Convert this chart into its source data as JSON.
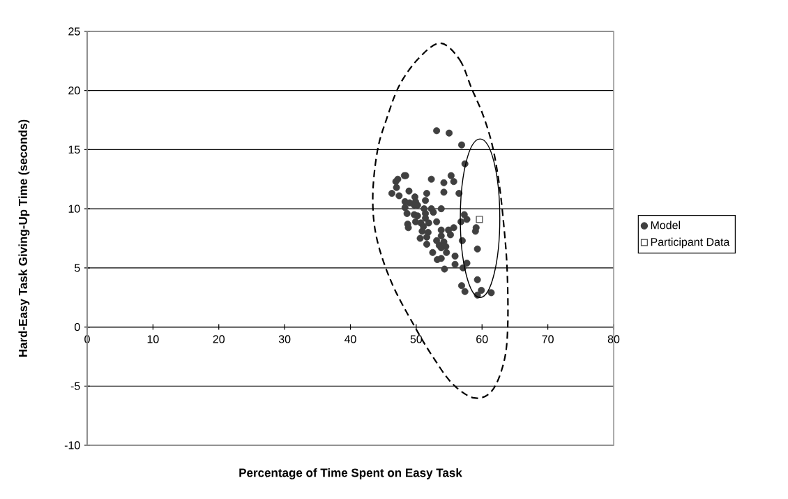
{
  "chart_data": {
    "type": "scatter",
    "xlabel": "Percentage of Time Spent on Easy Task",
    "ylabel": "Hard-Easy Task Giving-Up Time (seconds)",
    "xlim": [
      0,
      80
    ],
    "xticks": [
      0,
      10,
      20,
      30,
      40,
      50,
      60,
      70,
      80
    ],
    "ylim": [
      -10,
      25
    ],
    "yticks": [
      -10,
      -5,
      0,
      5,
      10,
      15,
      20,
      25
    ],
    "grid": "y",
    "legend": "right",
    "series": [
      {
        "name": "Model",
        "color": "#404040",
        "marker": "circle",
        "x": [
          53.1,
          55.0,
          56.9,
          57.4,
          48.2,
          48.4,
          46.9,
          47.2,
          52.3,
          55.3,
          55.7,
          54.2,
          47.0,
          46.3,
          48.9,
          47.4,
          51.6,
          54.2,
          56.5,
          49.8,
          51.4,
          48.3,
          49.0,
          49.9,
          49.7,
          50.2,
          48.3,
          51.2,
          52.3,
          53.8,
          48.6,
          49.7,
          50.2,
          51.4,
          52.6,
          51.4,
          57.3,
          57.7,
          56.8,
          49.9,
          48.7,
          48.8,
          50.7,
          51.9,
          53.1,
          51.1,
          53.8,
          54.9,
          55.7,
          59.1,
          59.0,
          51.8,
          50.9,
          55.2,
          53.8,
          50.6,
          51.6,
          53.1,
          54.2,
          57.0,
          53.5,
          51.6,
          53.8,
          54.5,
          59.3,
          52.5,
          54.6,
          53.8,
          53.2,
          55.9,
          57.7,
          55.9,
          57.1,
          54.3,
          59.3,
          56.9,
          57.4,
          59.9,
          59.3,
          61.4
        ],
        "values": [
          16.6,
          16.4,
          15.4,
          13.8,
          12.8,
          12.8,
          12.3,
          12.5,
          12.5,
          12.8,
          12.3,
          12.2,
          11.8,
          11.3,
          11.5,
          11.1,
          11.3,
          11.4,
          11.3,
          11.0,
          10.7,
          10.6,
          10.5,
          10.6,
          10.3,
          10.3,
          10.1,
          10.0,
          10.0,
          10.0,
          9.6,
          9.5,
          9.4,
          9.6,
          9.7,
          9.2,
          9.5,
          9.1,
          8.9,
          8.9,
          8.7,
          8.4,
          8.8,
          8.8,
          8.9,
          8.5,
          8.2,
          8.2,
          8.4,
          8.4,
          8.1,
          8.0,
          8.1,
          7.8,
          7.7,
          7.5,
          7.6,
          7.3,
          7.2,
          7.3,
          6.9,
          7.0,
          6.7,
          6.8,
          6.6,
          6.3,
          6.3,
          5.8,
          5.7,
          6.0,
          5.4,
          5.3,
          5.0,
          4.9,
          4.0,
          3.5,
          3.0,
          3.1,
          2.7,
          2.9
        ]
      },
      {
        "name": "Participant Data",
        "color": "#404040",
        "marker": "square",
        "x": [
          59.6
        ],
        "values": [
          9.1
        ]
      }
    ]
  }
}
